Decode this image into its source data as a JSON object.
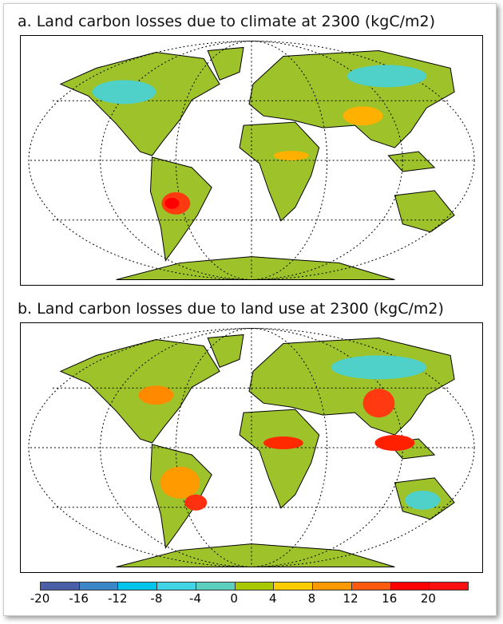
{
  "panels": [
    {
      "title": "a. Land carbon losses due to climate at 2300 (kgC/m2)"
    },
    {
      "title": "b. Land carbon losses due to land use at 2300 (kgC/m2)"
    }
  ],
  "colorbar": {
    "ticks": [
      "-20",
      "-16",
      "-12",
      "-8",
      "-4",
      "0",
      "4",
      "8",
      "12",
      "16",
      "20"
    ],
    "colors": [
      "#4a5fa8",
      "#3a86c6",
      "#00c4ec",
      "#40d4e6",
      "#5ccfbf",
      "#a8c800",
      "#ffcc00",
      "#ff9900",
      "#ff5a10",
      "#ff0000",
      "#ff1010"
    ]
  },
  "land_color": "#9ec22a"
}
